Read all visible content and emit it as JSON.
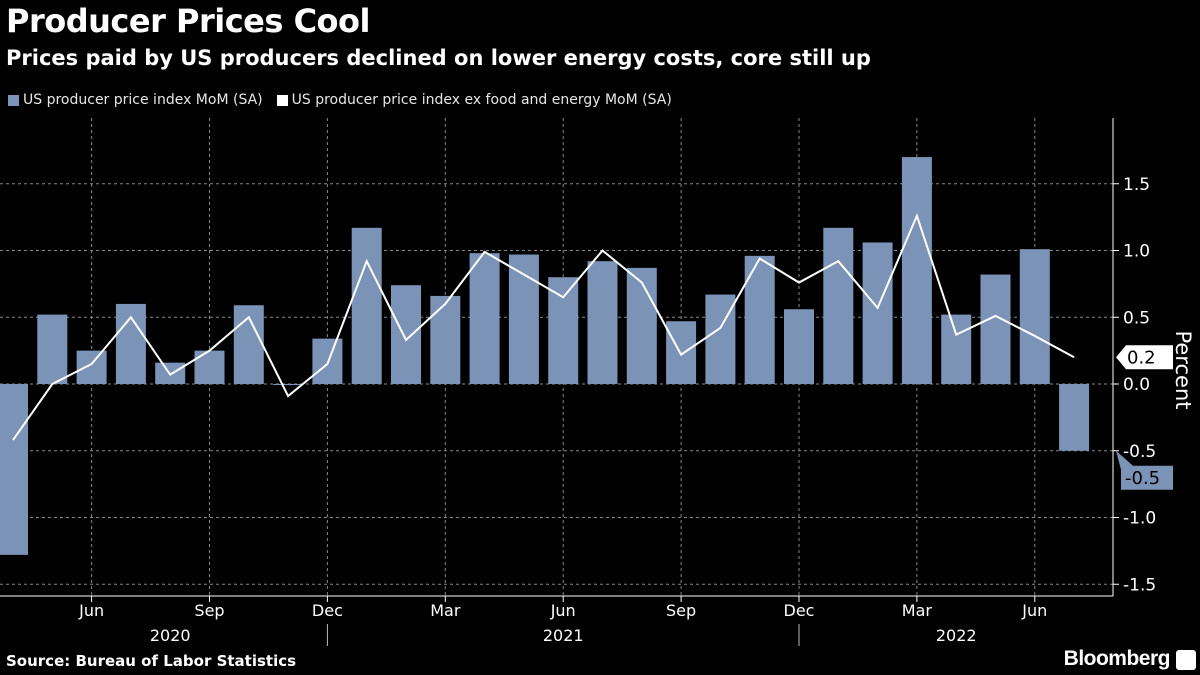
{
  "chart_data": {
    "type": "bar+line",
    "title": "Producer Prices Cool",
    "subtitle": "Prices paid by US producers declined on lower energy costs, core still up",
    "ylabel": "Percent",
    "ylim": [
      -1.55,
      1.95
    ],
    "yticks": [
      "1.5",
      "1.0",
      "0.5",
      "0.0",
      "-0.5",
      "-1.0",
      "-1.5"
    ],
    "ytick_values": [
      1.5,
      1.0,
      0.5,
      0.0,
      -0.5,
      -1.0,
      -1.5
    ],
    "grid": true,
    "legend_position": "top-left",
    "months": [
      "2020-04",
      "2020-05",
      "2020-06",
      "2020-07",
      "2020-08",
      "2020-09",
      "2020-10",
      "2020-11",
      "2020-12",
      "2021-01",
      "2021-02",
      "2021-03",
      "2021-04",
      "2021-05",
      "2021-06",
      "2021-07",
      "2021-08",
      "2021-09",
      "2021-10",
      "2021-11",
      "2021-12",
      "2022-01",
      "2022-02",
      "2022-03",
      "2022-04",
      "2022-05",
      "2022-06",
      "2022-07"
    ],
    "xticks": [
      {
        "label": "Jun",
        "month": "2020-06"
      },
      {
        "label": "Sep",
        "month": "2020-09"
      },
      {
        "label": "Dec",
        "month": "2020-12"
      },
      {
        "label": "Mar",
        "month": "2021-03"
      },
      {
        "label": "Jun",
        "month": "2021-06"
      },
      {
        "label": "Sep",
        "month": "2021-09"
      },
      {
        "label": "Dec",
        "month": "2021-12"
      },
      {
        "label": "Mar",
        "month": "2022-03"
      },
      {
        "label": "Jun",
        "month": "2022-06"
      }
    ],
    "years": [
      {
        "label": "2020",
        "month": "2020-08"
      },
      {
        "label": "2021",
        "month": "2021-06"
      },
      {
        "label": "2022",
        "month": "2022-04"
      }
    ],
    "series": [
      {
        "name": "US producer price index MoM (SA)",
        "type": "bar",
        "color": "#7b93b6",
        "values": [
          -1.28,
          0.52,
          0.25,
          0.6,
          0.16,
          0.25,
          0.59,
          0.0,
          0.34,
          1.17,
          0.74,
          0.66,
          0.98,
          0.97,
          0.8,
          0.92,
          0.87,
          0.47,
          0.67,
          0.96,
          0.56,
          1.17,
          1.06,
          1.7,
          0.52,
          0.82,
          1.01,
          -0.5
        ],
        "last_label": "-0.5"
      },
      {
        "name": "US producer price index ex food and energy MoM (SA)",
        "type": "line",
        "color": "#ffffff",
        "values": [
          -0.42,
          0.0,
          0.15,
          0.5,
          0.07,
          0.25,
          0.5,
          -0.09,
          0.15,
          0.92,
          0.33,
          0.6,
          0.99,
          0.82,
          0.65,
          1.0,
          0.76,
          0.22,
          0.42,
          0.94,
          0.76,
          0.92,
          0.57,
          1.26,
          0.37,
          0.51,
          0.36,
          0.2
        ],
        "last_label": "0.2"
      }
    ]
  },
  "source": "Source: Bureau of Labor Statistics",
  "brand": "Bloomberg"
}
